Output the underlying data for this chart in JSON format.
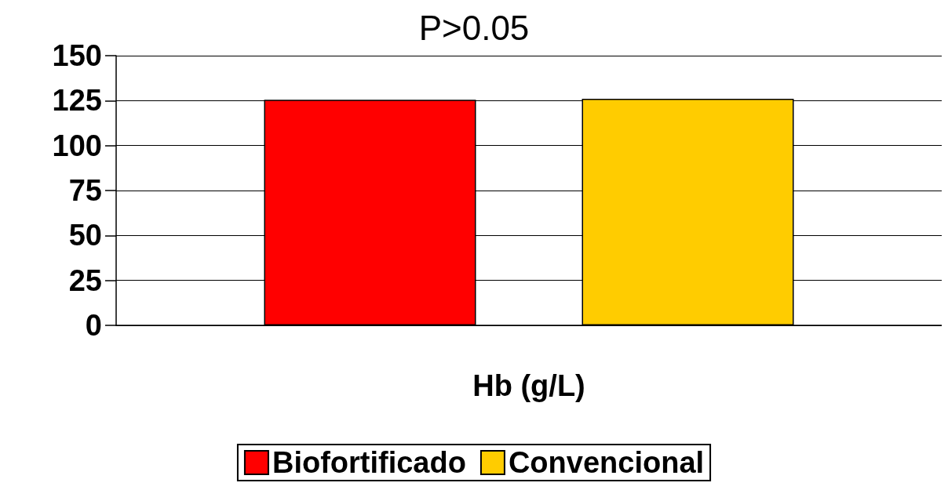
{
  "chart_data": {
    "type": "bar",
    "title": "P>0.05",
    "categories": [
      "Hb (g/L)"
    ],
    "series": [
      {
        "name": "Biofortificado",
        "color": "#ff0000",
        "values": [
          125.5
        ]
      },
      {
        "name": "Convencional",
        "color": "#ffcc00",
        "values": [
          126
        ]
      }
    ],
    "ylim": [
      0,
      150
    ],
    "yticks": [
      0,
      25,
      50,
      75,
      100,
      125,
      150
    ],
    "grid": "y",
    "legend": "bottom"
  }
}
